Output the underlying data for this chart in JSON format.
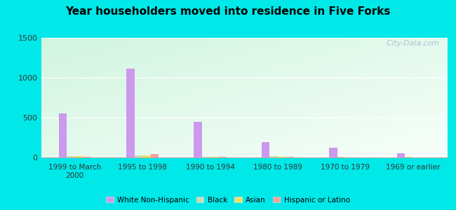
{
  "title": "Year householders moved into residence in Five Forks",
  "categories": [
    "1999 to March\n2000",
    "1995 to 1998",
    "1990 to 1994",
    "1980 to 1989",
    "1970 to 1979",
    "1969 or earlier"
  ],
  "series": {
    "White Non-Hispanic": [
      550,
      1110,
      450,
      195,
      125,
      50
    ],
    "Black": [
      20,
      30,
      7,
      20,
      5,
      5
    ],
    "Asian": [
      18,
      25,
      6,
      8,
      4,
      4
    ],
    "Hispanic or Latino": [
      10,
      40,
      5,
      8,
      4,
      4
    ]
  },
  "colors": {
    "White Non-Hispanic": "#cc99ee",
    "Black": "#c8ddb0",
    "Asian": "#f0e060",
    "Hispanic or Latino": "#f4a0a0"
  },
  "ylim": [
    0,
    1500
  ],
  "yticks": [
    0,
    500,
    1000,
    1500
  ],
  "bar_width": 0.12,
  "background_color_topleft": "#d8f4e8",
  "background_color_bottomright": "#e8fff8",
  "outer_color": "#00e8e8",
  "watermark": "  City-Data.com",
  "legend_labels": [
    "White Non-Hispanic",
    "Black",
    "Asian",
    "Hispanic or Latino"
  ],
  "title_fontsize": 11
}
